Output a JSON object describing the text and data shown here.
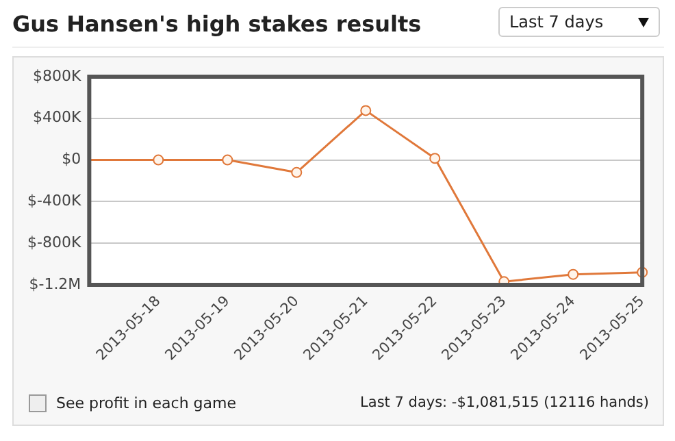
{
  "chart_data": {
    "type": "line",
    "title": "Gus Hansen's high stakes results",
    "categories": [
      null,
      "2013-05-18",
      "2013-05-19",
      "2013-05-20",
      "2013-05-21",
      "2013-05-22",
      "2013-05-23",
      "2013-05-24",
      "2013-05-25"
    ],
    "series": [
      {
        "color": "#e0783a",
        "values": [
          0,
          0,
          0,
          -120000,
          475000,
          15000,
          -1170000,
          -1100000,
          -1080000
        ]
      }
    ],
    "ylim": [
      -1200000,
      800000
    ],
    "yticks": [
      {
        "value": 800000,
        "label": "$800K"
      },
      {
        "value": 400000,
        "label": "$400K"
      },
      {
        "value": 0,
        "label": "$0"
      },
      {
        "value": -400000,
        "label": "$-400K"
      },
      {
        "value": -800000,
        "label": "$-800K"
      },
      {
        "value": -1200000,
        "label": "$-1.2M"
      }
    ],
    "grid": "y",
    "marker": "circle",
    "legend": false,
    "annotations": [
      "Last 7 days",
      "See profit in each game",
      "Last 7 days: -$1,081,515 (12116 hands)"
    ]
  }
}
